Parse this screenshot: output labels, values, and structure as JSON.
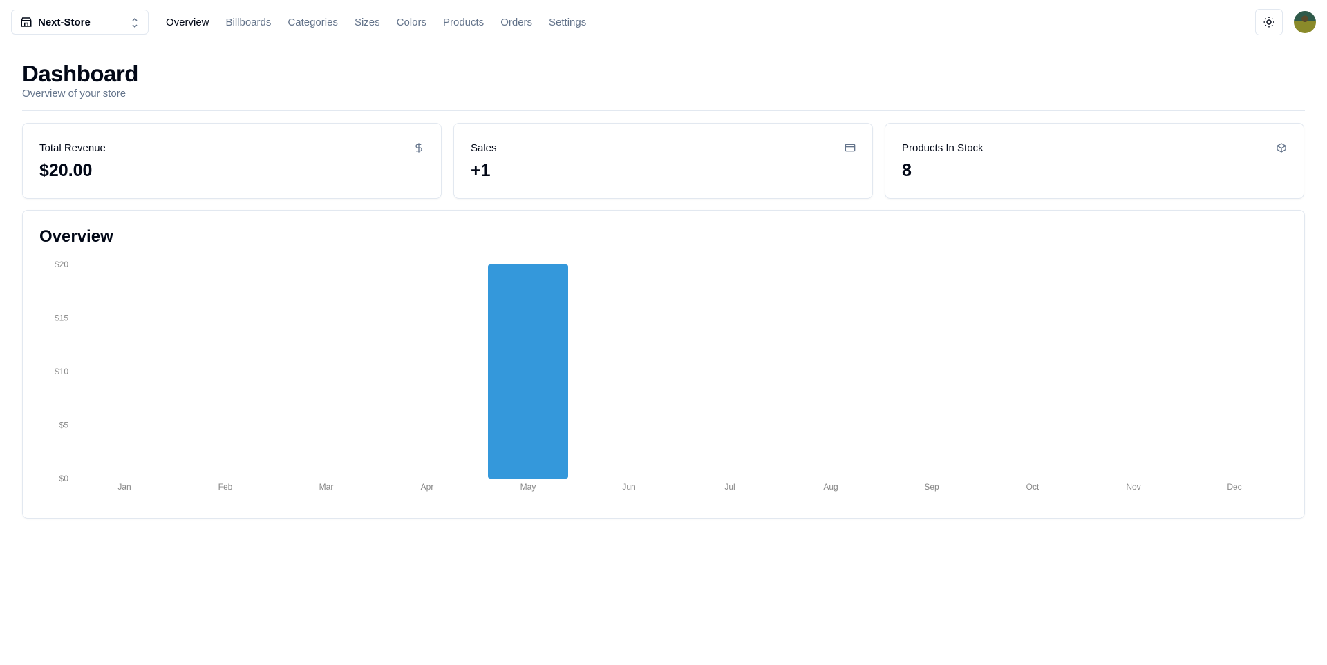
{
  "header": {
    "store_name": "Next-Store",
    "nav": [
      "Overview",
      "Billboards",
      "Categories",
      "Sizes",
      "Colors",
      "Products",
      "Orders",
      "Settings"
    ],
    "active": "Overview",
    "theme_icon": "sun-icon",
    "avatar": "user-avatar"
  },
  "page": {
    "title": "Dashboard",
    "subtitle": "Overview of your store"
  },
  "stats": [
    {
      "label": "Total Revenue",
      "value": "$20.00",
      "icon": "dollar-icon"
    },
    {
      "label": "Sales",
      "value": "+1",
      "icon": "credit-card-icon"
    },
    {
      "label": "Products In Stock",
      "value": "8",
      "icon": "package-icon"
    }
  ],
  "overview": {
    "title": "Overview"
  },
  "chart_data": {
    "type": "bar",
    "categories": [
      "Jan",
      "Feb",
      "Mar",
      "Apr",
      "May",
      "Jun",
      "Jul",
      "Aug",
      "Sep",
      "Oct",
      "Nov",
      "Dec"
    ],
    "values": [
      0,
      0,
      0,
      0,
      20,
      0,
      0,
      0,
      0,
      0,
      0,
      0
    ],
    "yticks": [
      "$0",
      "$5",
      "$10",
      "$15",
      "$20"
    ],
    "ylim": [
      0,
      20
    ],
    "bar_color": "#3498db",
    "grid": false
  }
}
